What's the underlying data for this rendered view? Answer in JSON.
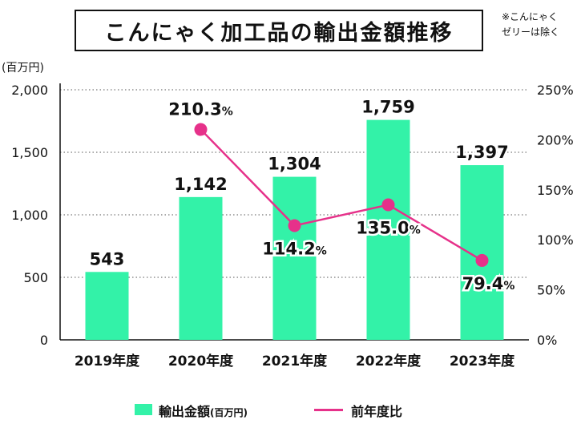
{
  "title": "こんにゃく加工品の輸出金額推移",
  "note_line1": "※こんにゃく",
  "note_line2": "ゼリーは除く",
  "y_unit": "(百万円)",
  "legend": {
    "bar_label": "輸出金額",
    "bar_unit": "(百万円)",
    "line_label": "前年度比"
  },
  "colors": {
    "bar": "#33f2a8",
    "line": "#e6318a",
    "grid": "#555555"
  },
  "chart_data": {
    "type": "bar",
    "title": "こんにゃく加工品の輸出金額推移",
    "categories": [
      "2019年度",
      "2020年度",
      "2021年度",
      "2022年度",
      "2023年度"
    ],
    "series": [
      {
        "name": "輸出金額",
        "axis": "left",
        "values": [
          543,
          1142,
          1304,
          1759,
          1397
        ],
        "labels": [
          "543",
          "1,142",
          "1,304",
          "1,759",
          "1,397"
        ]
      },
      {
        "name": "前年度比",
        "type": "line",
        "axis": "right",
        "values": [
          null,
          210.3,
          114.2,
          135.0,
          79.4
        ],
        "labels": [
          "",
          "210.3",
          "114.2",
          "135.0",
          "79.4"
        ],
        "label_suffix": "%"
      }
    ],
    "ylim": [
      0,
      2000
    ],
    "yticks": [
      0,
      500,
      1000,
      1500,
      2000
    ],
    "ytick_labels": [
      "0",
      "500",
      "1,000",
      "1,500",
      "2,000"
    ],
    "y2lim": [
      0,
      250
    ],
    "y2ticks": [
      0,
      50,
      100,
      150,
      200,
      250
    ],
    "y2tick_labels": [
      "0%",
      "50%",
      "100%",
      "150%",
      "200%",
      "250%"
    ],
    "ylabel": "(百万円)",
    "grid": true,
    "legend_position": "bottom"
  }
}
